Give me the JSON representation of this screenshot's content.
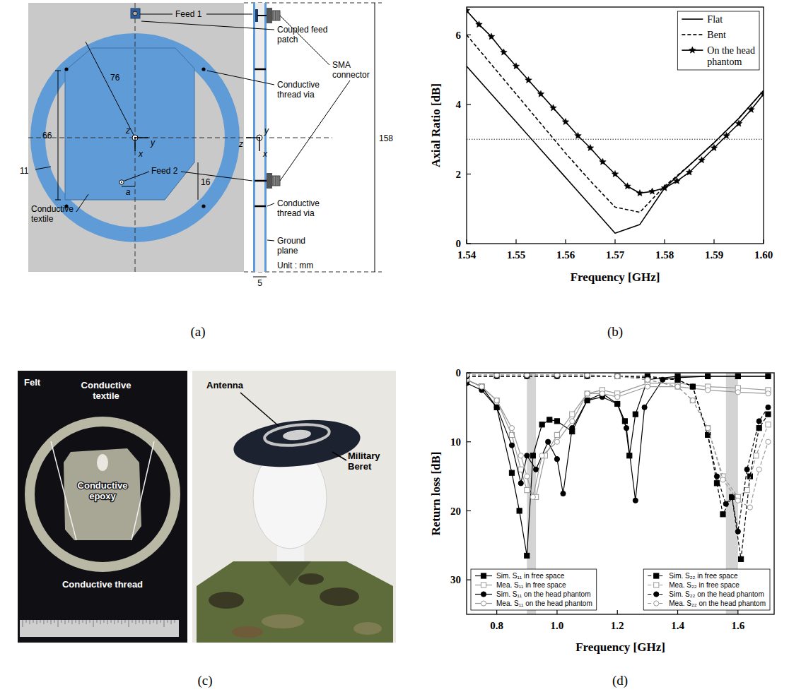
{
  "chart_data": [
    {
      "type": "line",
      "title": "(b)",
      "x_label": "Frequency [GHz]",
      "y_label": "Axial Ratio [dB]",
      "xlim": [
        1.54,
        1.6
      ],
      "xticks": [
        1.54,
        1.55,
        1.56,
        1.57,
        1.58,
        1.59,
        {
          "value": 1.6,
          "label": "1.60"
        }
      ],
      "ylim": [
        0,
        6.8
      ],
      "yticks": [
        0,
        2,
        4,
        6
      ],
      "grid": false,
      "legend": "upper right",
      "threshold": 3,
      "series": [
        {
          "name": "Flat",
          "color": "#000000",
          "line_style": "solid",
          "marker": "none",
          "x": [
            1.54,
            1.545,
            1.55,
            1.555,
            1.56,
            1.565,
            1.57,
            1.575,
            1.58,
            1.585,
            1.59,
            1.595,
            1.6
          ],
          "values": [
            5.1,
            4.3,
            3.5,
            2.7,
            1.9,
            1.1,
            0.3,
            0.55,
            1.6,
            2.25,
            2.9,
            3.6,
            4.4
          ]
        },
        {
          "name": "Bent",
          "color": "#000000",
          "line_style": "dashed",
          "marker": "none",
          "x": [
            1.54,
            1.545,
            1.55,
            1.555,
            1.56,
            1.565,
            1.57,
            1.575,
            1.58,
            1.585,
            1.59,
            1.595,
            1.6
          ],
          "values": [
            6.0,
            5.15,
            4.3,
            3.45,
            2.6,
            1.8,
            1.05,
            0.9,
            1.65,
            2.25,
            2.9,
            3.6,
            4.4
          ]
        },
        {
          "name": "On the head phantom",
          "color": "#000000",
          "line_style": "solid",
          "marker": "star",
          "x": [
            1.54,
            1.5425,
            1.545,
            1.5475,
            1.55,
            1.5525,
            1.555,
            1.5575,
            1.56,
            1.5625,
            1.565,
            1.5675,
            1.57,
            1.5725,
            1.575,
            1.5775,
            1.58,
            1.5825,
            1.585,
            1.5875,
            1.59,
            1.5925,
            1.595,
            1.5975,
            1.6
          ],
          "values": [
            6.7,
            6.3,
            5.95,
            5.5,
            5.1,
            4.7,
            4.3,
            3.9,
            3.5,
            3.1,
            2.75,
            2.35,
            2.0,
            1.65,
            1.45,
            1.5,
            1.6,
            1.8,
            2.05,
            2.4,
            2.75,
            3.1,
            3.45,
            3.85,
            4.3
          ]
        }
      ]
    },
    {
      "type": "line",
      "title": "(d)",
      "x_label": "Frequency [GHz]",
      "y_label": "Return loss [dB]",
      "xlim": [
        0.7,
        1.72
      ],
      "xticks": [
        0.8,
        {
          "value": 1,
          "label": "1.0"
        },
        1.2,
        1.4,
        1.6
      ],
      "ylim": [
        35,
        0
      ],
      "yticks": [
        0,
        10,
        20,
        30
      ],
      "grid": false,
      "legend": "bottom",
      "highlight_bands": [
        [
          0.9,
          0.93
        ],
        [
          1.56,
          1.6
        ]
      ],
      "series": [
        {
          "name": "Sim. S₁₁ in free space",
          "color": "#000000",
          "line_style": "solid",
          "marker": "filled-square",
          "x": [
            0.7,
            0.75,
            0.8,
            0.85,
            0.875,
            0.9,
            0.92,
            0.95,
            0.975,
            1.0,
            1.05,
            1.1,
            1.15,
            1.2,
            1.225,
            1.24,
            1.26,
            1.3,
            1.4,
            1.5,
            1.6,
            1.7
          ],
          "values": [
            1,
            2,
            5,
            14.5,
            20,
            26.5,
            12,
            7.5,
            6.8,
            7,
            8.5,
            4,
            3,
            4.5,
            7,
            12,
            6,
            1,
            0.5,
            0.5,
            0.5,
            0.5
          ]
        },
        {
          "name": "Mea. S₁₁ in free space",
          "color": "#9a9a9a",
          "line_style": "solid",
          "marker": "open-square",
          "x": [
            0.7,
            0.75,
            0.8,
            0.85,
            0.88,
            0.9,
            0.93,
            0.96,
            1.0,
            1.05,
            1.1,
            1.15,
            1.2,
            1.3,
            1.4,
            1.5,
            1.6,
            1.7
          ],
          "values": [
            1,
            2,
            4,
            9,
            14,
            17,
            18,
            12,
            9,
            6,
            3,
            2.5,
            3,
            1.5,
            1.5,
            2,
            2.2,
            2.5
          ]
        },
        {
          "name": "Sim. S₁₁ on the head phantom",
          "color": "#000000",
          "line_style": "solid",
          "marker": "filled-circle",
          "x": [
            0.7,
            0.75,
            0.8,
            0.85,
            0.88,
            0.9,
            0.93,
            0.97,
            1.0,
            1.02,
            1.05,
            1.1,
            1.15,
            1.2,
            1.23,
            1.26,
            1.29,
            1.35,
            1.4,
            1.5,
            1.6,
            1.7
          ],
          "values": [
            1.5,
            2.5,
            5,
            10.5,
            16,
            12,
            14,
            10,
            12.5,
            17.5,
            8,
            4,
            3.5,
            4.5,
            8,
            18.5,
            5,
            1,
            0.7,
            0.5,
            0.5,
            0.5
          ]
        },
        {
          "name": "Mea. S₁₁ on the head phantom",
          "color": "#9a9a9a",
          "line_style": "solid",
          "marker": "open-circle",
          "x": [
            0.7,
            0.75,
            0.8,
            0.85,
            0.88,
            0.9,
            0.92,
            0.95,
            1.0,
            1.05,
            1.1,
            1.15,
            1.2,
            1.3,
            1.4,
            1.5,
            1.6,
            1.7
          ],
          "values": [
            1,
            2,
            4,
            8,
            12,
            15,
            18,
            12,
            10,
            7,
            3,
            3,
            3.5,
            2,
            2,
            2.5,
            2.8,
            3
          ]
        },
        {
          "name": "Sim. S₂₂ in free space",
          "color": "#000000",
          "line_style": "dashed",
          "marker": "filled-square",
          "x": [
            0.7,
            0.8,
            0.9,
            1.0,
            1.1,
            1.2,
            1.3,
            1.4,
            1.45,
            1.5,
            1.53,
            1.55,
            1.58,
            1.61,
            1.64,
            1.67,
            1.7
          ],
          "values": [
            0.5,
            0.5,
            0.5,
            0.5,
            0.5,
            0.5,
            0.5,
            1,
            2,
            9,
            16,
            20.5,
            18,
            27,
            15,
            8,
            6
          ]
        },
        {
          "name": "Mea. S₂₂ in free space",
          "color": "#9a9a9a",
          "line_style": "dashed",
          "marker": "open-square",
          "x": [
            0.7,
            0.8,
            0.9,
            1.0,
            1.1,
            1.2,
            1.3,
            1.4,
            1.45,
            1.5,
            1.55,
            1.6,
            1.63,
            1.66,
            1.7
          ],
          "values": [
            0.5,
            0.5,
            0.5,
            0.5,
            0.5,
            0.5,
            1,
            2,
            4,
            8,
            15,
            18,
            17,
            12,
            7.5
          ]
        },
        {
          "name": "Sim. S₂₂ on the head phantom",
          "color": "#000000",
          "line_style": "dashed",
          "marker": "filled-circle",
          "x": [
            0.7,
            0.8,
            0.9,
            1.0,
            1.1,
            1.2,
            1.3,
            1.4,
            1.45,
            1.5,
            1.53,
            1.56,
            1.58,
            1.6,
            1.63,
            1.67,
            1.7
          ],
          "values": [
            0.5,
            0.5,
            0.5,
            0.5,
            0.5,
            0.5,
            0.7,
            1,
            2,
            9,
            15,
            19,
            18,
            23,
            14,
            7,
            5
          ]
        },
        {
          "name": "Mea. S₂₂ on the head phantom",
          "color": "#9a9a9a",
          "line_style": "dashed",
          "marker": "open-circle",
          "x": [
            0.7,
            0.8,
            0.9,
            1.0,
            1.1,
            1.2,
            1.3,
            1.4,
            1.45,
            1.5,
            1.55,
            1.6,
            1.64,
            1.67,
            1.7
          ],
          "values": [
            0.3,
            0.3,
            0.3,
            0.3,
            0.3,
            0.5,
            1,
            2,
            4,
            8,
            15.5,
            18.5,
            19.5,
            14,
            10
          ]
        }
      ]
    }
  ],
  "panel_a": {
    "label": "(a)",
    "callouts": [
      "Feed 1",
      "Coupled feed patch",
      "Conductive thread via",
      "SMA connector",
      "Feed 2",
      "Conductive thread via",
      "Conductive textile",
      "Ground plane"
    ],
    "dimensions": [
      76,
      66,
      11,
      16,
      5,
      158
    ],
    "feed_offset": "a",
    "axis_labels": [
      "z",
      "x",
      "y",
      "y",
      "z",
      "x"
    ],
    "unit": "Unit : mm"
  },
  "panel_c": {
    "label": "(c)",
    "left_labels": [
      "Felt",
      "Conductive textile",
      "Conductive epoxy",
      "Conductive thread"
    ],
    "right_labels": [
      "Antenna",
      "Military Beret"
    ]
  }
}
